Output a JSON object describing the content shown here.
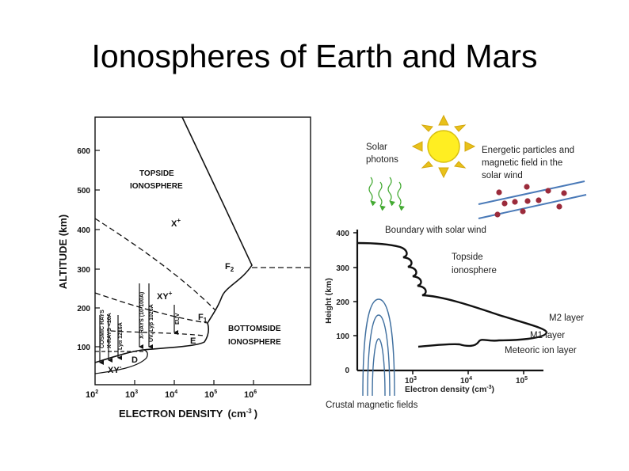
{
  "title": "Ionospheres of Earth and Mars",
  "earth_figure": {
    "xlabel": "ELECTRON DENSITY",
    "xlabel_unit": "(cm",
    "xlabel_unit_exp": "-3",
    "xlabel_unit_close": ")",
    "ylabel": "ALTITUDE (km)",
    "x_ticks": [
      {
        "base": "10",
        "exp": "2"
      },
      {
        "base": "10",
        "exp": "3"
      },
      {
        "base": "10",
        "exp": "4"
      },
      {
        "base": "10",
        "exp": "5"
      },
      {
        "base": "10",
        "exp": "6"
      }
    ],
    "y_ticks": [
      "100",
      "200",
      "300",
      "400",
      "500",
      "600"
    ],
    "region_top": [
      "TOPSIDE",
      "IONOSPHERE"
    ],
    "region_bottom": [
      "BOTTOMSIDE",
      "IONOSPHERE"
    ],
    "layer_f2": "F",
    "layer_f2_sub": "2",
    "layer_f1": "F",
    "layer_f1_sub": "1",
    "layer_e": "E",
    "layer_d": "D",
    "ion_x": "X",
    "ion_xy": "XY",
    "ion_xy_minus": "XY",
    "ion_plus": "+",
    "ion_minus": "-",
    "arrow_labels": {
      "cosmic": [
        "COSMIC RAYS",
        "X-RAYS <10A"
      ],
      "lya": "Lyα 1216A",
      "xrays": [
        "X-RAYS (10-100A)",
        "UV, Lyβ 1026A"
      ],
      "euv": "EUV"
    }
  },
  "mars_figure": {
    "solar_photons": [
      "Solar",
      "photons"
    ],
    "energetic_particles": [
      "Energetic particles and",
      "magnetic  field in the",
      "solar wind"
    ],
    "boundary": "Boundary with solar wind",
    "topside": [
      "Topside",
      "ionosphere"
    ],
    "m2": "M2 layer",
    "m1": "M1 layer",
    "meteoric": "Meteoric ion layer",
    "crustal": "Crustal magnetic fields",
    "ylabel": "Height (km)",
    "xlabel": "Electron density (cm",
    "xlabel_exp": "-3",
    "xlabel_close": ")",
    "y_ticks": [
      "0",
      "100",
      "200",
      "300",
      "400"
    ],
    "x_ticks": [
      {
        "base": "10",
        "exp": "3"
      },
      {
        "base": "10",
        "exp": "4"
      },
      {
        "base": "10",
        "exp": "5"
      }
    ]
  },
  "colors": {
    "sun": "#ffee22",
    "sun_rays": "#e8c11a",
    "photon_arrows": "#44aa33",
    "field_lines": "#4a7ab8",
    "particles": "#9b2b3b",
    "crustal_lines": "#3f6f9f"
  }
}
